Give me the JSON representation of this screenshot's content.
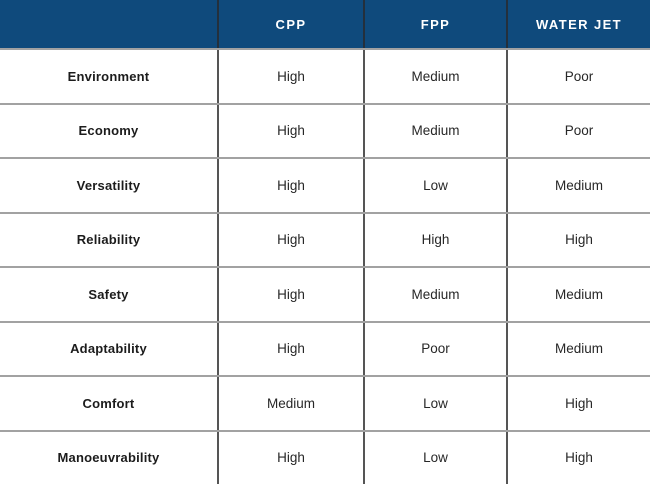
{
  "chart_data": {
    "type": "table",
    "title": "",
    "columns": [
      "",
      "CPP",
      "FPP",
      "WATER JET"
    ],
    "rows": [
      {
        "label": "Environment",
        "values": [
          "High",
          "Medium",
          "Poor"
        ]
      },
      {
        "label": "Economy",
        "values": [
          "High",
          "Medium",
          "Poor"
        ]
      },
      {
        "label": "Versatility",
        "values": [
          "High",
          "Low",
          "Medium"
        ]
      },
      {
        "label": "Reliability",
        "values": [
          "High",
          "High",
          "High"
        ]
      },
      {
        "label": "Safety",
        "values": [
          "High",
          "Medium",
          "Medium"
        ]
      },
      {
        "label": "Adaptability",
        "values": [
          "High",
          "Poor",
          "Medium"
        ]
      },
      {
        "label": "Comfort",
        "values": [
          "Medium",
          "Low",
          "High"
        ]
      },
      {
        "label": "Manoeuvrability",
        "values": [
          "High",
          "Low",
          "High"
        ]
      }
    ]
  },
  "colors": {
    "header_background": "#0f4a7c",
    "header_text": "#ffffff",
    "row_divider": "#a2a2a2",
    "column_divider": "#555555",
    "label_text": "#1c1c1c",
    "value_text": "#272727",
    "body_background": "#ffffff"
  }
}
